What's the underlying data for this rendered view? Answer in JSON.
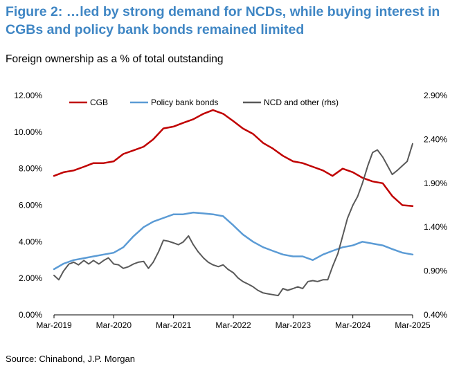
{
  "header": {
    "title_line1": "Figure 2: …led by strong demand for NCDs, while buying interest in",
    "title_line2": "CGBs and policy bank bonds remained limited",
    "subtitle": "Foreign ownership as a % of total outstanding"
  },
  "footer": {
    "source": "Source: Chinabond, J.P. Morgan"
  },
  "colors": {
    "cgb": "#c00000",
    "policy": "#5b9bd5",
    "ncd": "#595959",
    "title": "#3f86c4",
    "axis": "#000000"
  },
  "chart_data": {
    "type": "line",
    "title": "Foreign ownership as a % of total outstanding",
    "xlabel": "",
    "ylabel": "",
    "x_range": [
      2019.17,
      2025.17
    ],
    "ylim": [
      0,
      12
    ],
    "y2lim": [
      0.4,
      2.9
    ],
    "grid": false,
    "legend_position": "top",
    "x_ticks": [
      {
        "value": 2019.17,
        "label": "Mar-2019"
      },
      {
        "value": 2020.17,
        "label": "Mar-2020"
      },
      {
        "value": 2021.17,
        "label": "Mar-2021"
      },
      {
        "value": 2022.17,
        "label": "Mar-2022"
      },
      {
        "value": 2023.17,
        "label": "Mar-2023"
      },
      {
        "value": 2024.17,
        "label": "Mar-2024"
      },
      {
        "value": 2025.17,
        "label": "Mar-2025"
      }
    ],
    "y_ticks": [
      {
        "value": 0,
        "label": "0.00%"
      },
      {
        "value": 2,
        "label": "2.00%"
      },
      {
        "value": 4,
        "label": "4.00%"
      },
      {
        "value": 6,
        "label": "6.00%"
      },
      {
        "value": 8,
        "label": "8.00%"
      },
      {
        "value": 10,
        "label": "10.00%"
      },
      {
        "value": 12,
        "label": "12.00%"
      }
    ],
    "y2_ticks": [
      {
        "value": 0.4,
        "label": "0.40%"
      },
      {
        "value": 0.9,
        "label": "0.90%"
      },
      {
        "value": 1.4,
        "label": "1.40%"
      },
      {
        "value": 1.9,
        "label": "1.90%"
      },
      {
        "value": 2.4,
        "label": "2.40%"
      },
      {
        "value": 2.9,
        "label": "2.90%"
      }
    ],
    "series": [
      {
        "name": "CGB",
        "key": "cgb",
        "axis": "left",
        "points": [
          [
            2019.17,
            7.6
          ],
          [
            2019.33,
            7.8
          ],
          [
            2019.5,
            7.9
          ],
          [
            2019.67,
            8.1
          ],
          [
            2019.83,
            8.3
          ],
          [
            2020.0,
            8.3
          ],
          [
            2020.17,
            8.4
          ],
          [
            2020.33,
            8.8
          ],
          [
            2020.5,
            9.0
          ],
          [
            2020.67,
            9.2
          ],
          [
            2020.83,
            9.6
          ],
          [
            2021.0,
            10.2
          ],
          [
            2021.17,
            10.3
          ],
          [
            2021.33,
            10.5
          ],
          [
            2021.5,
            10.7
          ],
          [
            2021.67,
            11.0
          ],
          [
            2021.83,
            11.2
          ],
          [
            2022.0,
            11.0
          ],
          [
            2022.17,
            10.6
          ],
          [
            2022.33,
            10.2
          ],
          [
            2022.5,
            9.9
          ],
          [
            2022.67,
            9.4
          ],
          [
            2022.83,
            9.1
          ],
          [
            2023.0,
            8.7
          ],
          [
            2023.17,
            8.4
          ],
          [
            2023.33,
            8.3
          ],
          [
            2023.5,
            8.1
          ],
          [
            2023.67,
            7.9
          ],
          [
            2023.83,
            7.6
          ],
          [
            2024.0,
            8.0
          ],
          [
            2024.17,
            7.8
          ],
          [
            2024.33,
            7.5
          ],
          [
            2024.5,
            7.3
          ],
          [
            2024.67,
            7.2
          ],
          [
            2024.83,
            6.5
          ],
          [
            2025.0,
            6.0
          ],
          [
            2025.17,
            5.95
          ]
        ]
      },
      {
        "name": "Policy bank bonds",
        "key": "policy",
        "axis": "left",
        "points": [
          [
            2019.17,
            2.5
          ],
          [
            2019.33,
            2.8
          ],
          [
            2019.5,
            3.0
          ],
          [
            2019.67,
            3.1
          ],
          [
            2019.83,
            3.2
          ],
          [
            2020.0,
            3.3
          ],
          [
            2020.17,
            3.4
          ],
          [
            2020.33,
            3.7
          ],
          [
            2020.5,
            4.3
          ],
          [
            2020.67,
            4.8
          ],
          [
            2020.83,
            5.1
          ],
          [
            2021.0,
            5.3
          ],
          [
            2021.17,
            5.5
          ],
          [
            2021.33,
            5.5
          ],
          [
            2021.5,
            5.6
          ],
          [
            2021.67,
            5.55
          ],
          [
            2021.83,
            5.5
          ],
          [
            2022.0,
            5.4
          ],
          [
            2022.17,
            4.9
          ],
          [
            2022.33,
            4.4
          ],
          [
            2022.5,
            4.0
          ],
          [
            2022.67,
            3.7
          ],
          [
            2022.83,
            3.5
          ],
          [
            2023.0,
            3.3
          ],
          [
            2023.17,
            3.2
          ],
          [
            2023.33,
            3.2
          ],
          [
            2023.5,
            3.0
          ],
          [
            2023.67,
            3.3
          ],
          [
            2023.83,
            3.5
          ],
          [
            2024.0,
            3.7
          ],
          [
            2024.17,
            3.8
          ],
          [
            2024.33,
            4.0
          ],
          [
            2024.5,
            3.9
          ],
          [
            2024.67,
            3.8
          ],
          [
            2024.83,
            3.6
          ],
          [
            2025.0,
            3.4
          ],
          [
            2025.17,
            3.3
          ]
        ]
      },
      {
        "name": "NCD and other (rhs)",
        "key": "ncd",
        "axis": "right",
        "points": [
          [
            2019.17,
            0.85
          ],
          [
            2019.25,
            0.8
          ],
          [
            2019.33,
            0.9
          ],
          [
            2019.42,
            0.98
          ],
          [
            2019.5,
            1.0
          ],
          [
            2019.58,
            0.97
          ],
          [
            2019.67,
            1.02
          ],
          [
            2019.75,
            0.98
          ],
          [
            2019.83,
            1.02
          ],
          [
            2019.92,
            0.98
          ],
          [
            2020.0,
            1.02
          ],
          [
            2020.08,
            1.05
          ],
          [
            2020.17,
            0.98
          ],
          [
            2020.25,
            0.97
          ],
          [
            2020.33,
            0.93
          ],
          [
            2020.42,
            0.95
          ],
          [
            2020.5,
            0.98
          ],
          [
            2020.58,
            1.0
          ],
          [
            2020.67,
            1.01
          ],
          [
            2020.75,
            0.93
          ],
          [
            2020.83,
            1.0
          ],
          [
            2020.92,
            1.12
          ],
          [
            2021.0,
            1.25
          ],
          [
            2021.08,
            1.24
          ],
          [
            2021.17,
            1.22
          ],
          [
            2021.25,
            1.2
          ],
          [
            2021.33,
            1.23
          ],
          [
            2021.42,
            1.3
          ],
          [
            2021.5,
            1.2
          ],
          [
            2021.58,
            1.12
          ],
          [
            2021.67,
            1.05
          ],
          [
            2021.75,
            1.0
          ],
          [
            2021.83,
            0.97
          ],
          [
            2021.92,
            0.95
          ],
          [
            2022.0,
            0.97
          ],
          [
            2022.08,
            0.92
          ],
          [
            2022.17,
            0.88
          ],
          [
            2022.25,
            0.82
          ],
          [
            2022.33,
            0.78
          ],
          [
            2022.42,
            0.75
          ],
          [
            2022.5,
            0.72
          ],
          [
            2022.58,
            0.68
          ],
          [
            2022.67,
            0.65
          ],
          [
            2022.75,
            0.64
          ],
          [
            2022.83,
            0.63
          ],
          [
            2022.92,
            0.62
          ],
          [
            2023.0,
            0.7
          ],
          [
            2023.08,
            0.68
          ],
          [
            2023.17,
            0.7
          ],
          [
            2023.25,
            0.72
          ],
          [
            2023.33,
            0.7
          ],
          [
            2023.42,
            0.78
          ],
          [
            2023.5,
            0.79
          ],
          [
            2023.58,
            0.78
          ],
          [
            2023.67,
            0.8
          ],
          [
            2023.75,
            0.8
          ],
          [
            2023.83,
            0.95
          ],
          [
            2023.92,
            1.1
          ],
          [
            2024.0,
            1.3
          ],
          [
            2024.08,
            1.5
          ],
          [
            2024.17,
            1.65
          ],
          [
            2024.25,
            1.75
          ],
          [
            2024.33,
            1.9
          ],
          [
            2024.42,
            2.1
          ],
          [
            2024.5,
            2.25
          ],
          [
            2024.58,
            2.28
          ],
          [
            2024.67,
            2.2
          ],
          [
            2024.75,
            2.1
          ],
          [
            2024.83,
            2.0
          ],
          [
            2024.92,
            2.05
          ],
          [
            2025.0,
            2.1
          ],
          [
            2025.08,
            2.15
          ],
          [
            2025.17,
            2.35
          ]
        ]
      }
    ]
  }
}
